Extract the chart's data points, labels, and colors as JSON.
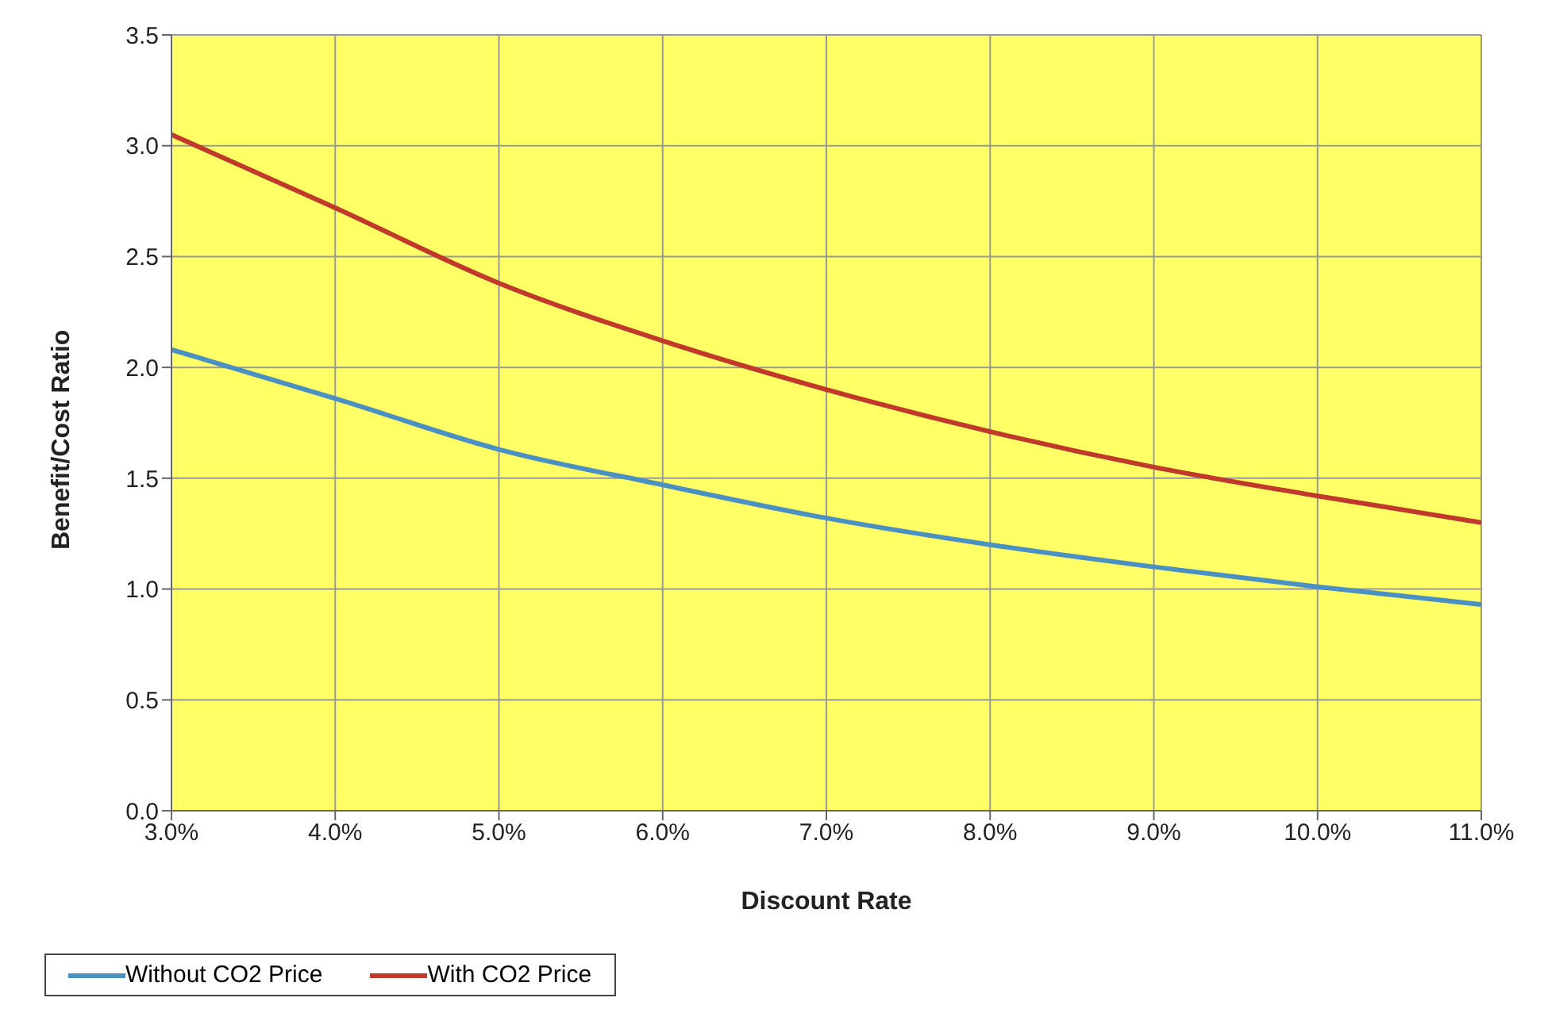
{
  "chart_data": {
    "type": "line",
    "xlabel": "Discount Rate",
    "ylabel": "Benefit/Cost Ratio",
    "x": [
      3,
      4,
      5,
      6,
      7,
      8,
      9,
      10,
      11
    ],
    "series": [
      {
        "name": "Without CO2 Price",
        "color": "#4a90c2",
        "values": [
          2.08,
          1.86,
          1.63,
          1.47,
          1.32,
          1.2,
          1.1,
          1.01,
          0.93
        ]
      },
      {
        "name": "With CO2 Price",
        "color": "#c0392b",
        "values": [
          3.05,
          2.72,
          2.38,
          2.12,
          1.9,
          1.71,
          1.55,
          1.42,
          1.3
        ]
      }
    ],
    "xlim": [
      3,
      11
    ],
    "xticks": [
      {
        "value": 3,
        "label": "3.0%"
      },
      {
        "value": 4,
        "label": "4.0%"
      },
      {
        "value": 5,
        "label": "5.0%"
      },
      {
        "value": 6,
        "label": "6.0%"
      },
      {
        "value": 7,
        "label": "7.0%"
      },
      {
        "value": 8,
        "label": "8.0%"
      },
      {
        "value": 9,
        "label": "9.0%"
      },
      {
        "value": 10,
        "label": "10.0%"
      },
      {
        "value": 11,
        "label": "11.0%"
      }
    ],
    "ylim": [
      0,
      3.5
    ],
    "yticks": [
      {
        "value": 0,
        "label": "0.0"
      },
      {
        "value": 0.5,
        "label": "0.5"
      },
      {
        "value": 1,
        "label": "1.0"
      },
      {
        "value": 1.5,
        "label": "1.5"
      },
      {
        "value": 2,
        "label": "2.0"
      },
      {
        "value": 2.5,
        "label": "2.5"
      },
      {
        "value": 3,
        "label": "3.0"
      },
      {
        "value": 3.5,
        "label": "3.5"
      }
    ],
    "grid": true,
    "legend": "bottom",
    "marker": "none",
    "line_style": "solid"
  }
}
